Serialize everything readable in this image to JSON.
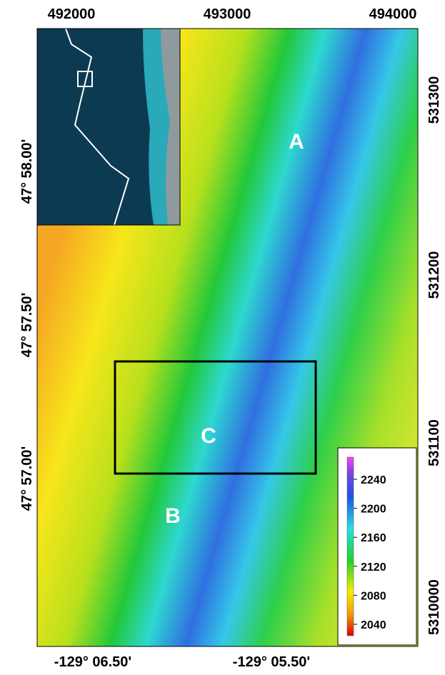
{
  "map": {
    "top_labels": [
      "492000",
      "493000",
      "494000"
    ],
    "right_labels": [
      "531300",
      "531200",
      "531100",
      "5310000"
    ],
    "left_labels": [
      "47° 58.00'",
      "47° 57.50'",
      "47° 57.00'"
    ],
    "bottom_labels": [
      "-129° 06.50'",
      "-129° 05.50'"
    ],
    "region_labels": [
      "A",
      "C",
      "B"
    ],
    "colorbar": {
      "ticks": [
        2240,
        2200,
        2160,
        2120,
        2080,
        2040
      ]
    }
  }
}
